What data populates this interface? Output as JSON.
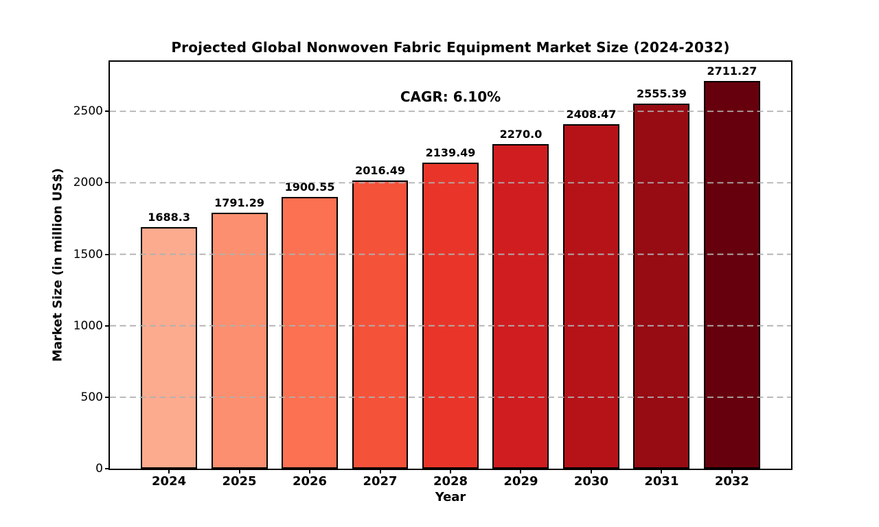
{
  "chart_data": {
    "type": "bar",
    "title": "Projected Global Nonwoven Fabric Equipment Market Size (2024-2032)",
    "xlabel": "Year",
    "ylabel": "Market Size (in million US$)",
    "annotation": "CAGR: 6.10%",
    "categories": [
      "2024",
      "2025",
      "2026",
      "2027",
      "2028",
      "2029",
      "2030",
      "2031",
      "2032"
    ],
    "values": [
      1688.3,
      1791.29,
      1900.55,
      2016.49,
      2139.49,
      2270.0,
      2408.47,
      2555.39,
      2711.27
    ],
    "value_labels": [
      "1688.3",
      "1791.29",
      "1900.55",
      "2016.49",
      "2139.49",
      "2270.0",
      "2408.47",
      "2555.39",
      "2711.27"
    ],
    "bar_colors": [
      "#fcab8e",
      "#fc8f6f",
      "#fb7151",
      "#f5523a",
      "#e93529",
      "#d01d20",
      "#b61319",
      "#970b13",
      "#67000d"
    ],
    "bar_edge_color": "#000000",
    "y_ticks": [
      0,
      500,
      1000,
      1500,
      2000,
      2500
    ],
    "ylim": [
      0,
      2846.8
    ],
    "grid": {
      "axis": "y",
      "style": "dashed",
      "color": "#b0b0b0"
    },
    "legend": "none",
    "plot_background": "#ffffff"
  }
}
